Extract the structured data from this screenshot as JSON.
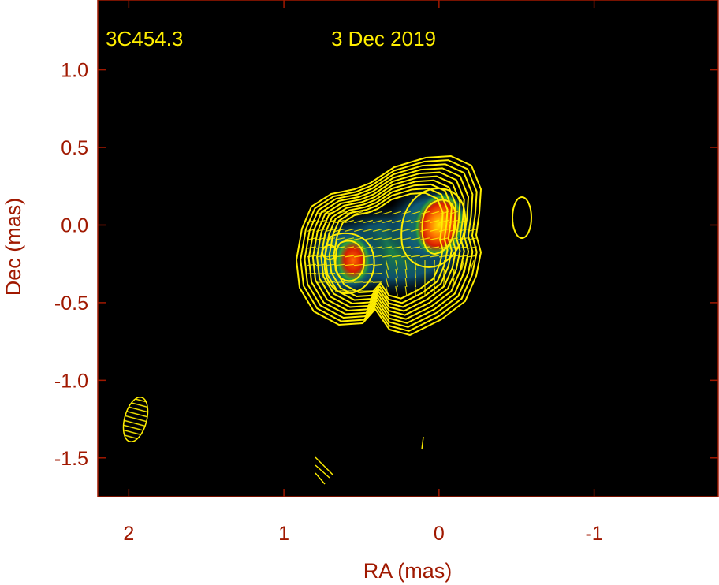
{
  "chart_data": {
    "type": "heatmap",
    "source": "3C454.3",
    "date": "3 Dec 2019",
    "xlabel": "RA (mas)",
    "ylabel": "Dec (mas)",
    "xlim": [
      2.2,
      -1.8
    ],
    "ylim": [
      -1.75,
      1.45
    ],
    "x_axis_reversed": true,
    "xticks": [
      2,
      1,
      0,
      -1
    ],
    "xtick_labels": [
      "2",
      "1",
      "0",
      "-1"
    ],
    "yticks": [
      1.0,
      0.5,
      0.0,
      -0.5,
      -1.0,
      -1.5
    ],
    "ytick_labels": [
      "1.0",
      "0.5",
      "0.0",
      "-0.5",
      "-1.0",
      "-1.5"
    ],
    "intensity_peaks": [
      {
        "ra": 0.0,
        "dec": 0.0,
        "level": "max"
      },
      {
        "ra": 0.55,
        "dec": -0.22,
        "level": "high"
      }
    ],
    "restoring_beam": {
      "ra": 1.95,
      "dec": -1.25,
      "major": 0.29,
      "minor": 0.16
    },
    "colors": {
      "background": "#000000",
      "contours": "#ffee00",
      "axis": "#a01800",
      "labels": "#ffee00"
    }
  }
}
